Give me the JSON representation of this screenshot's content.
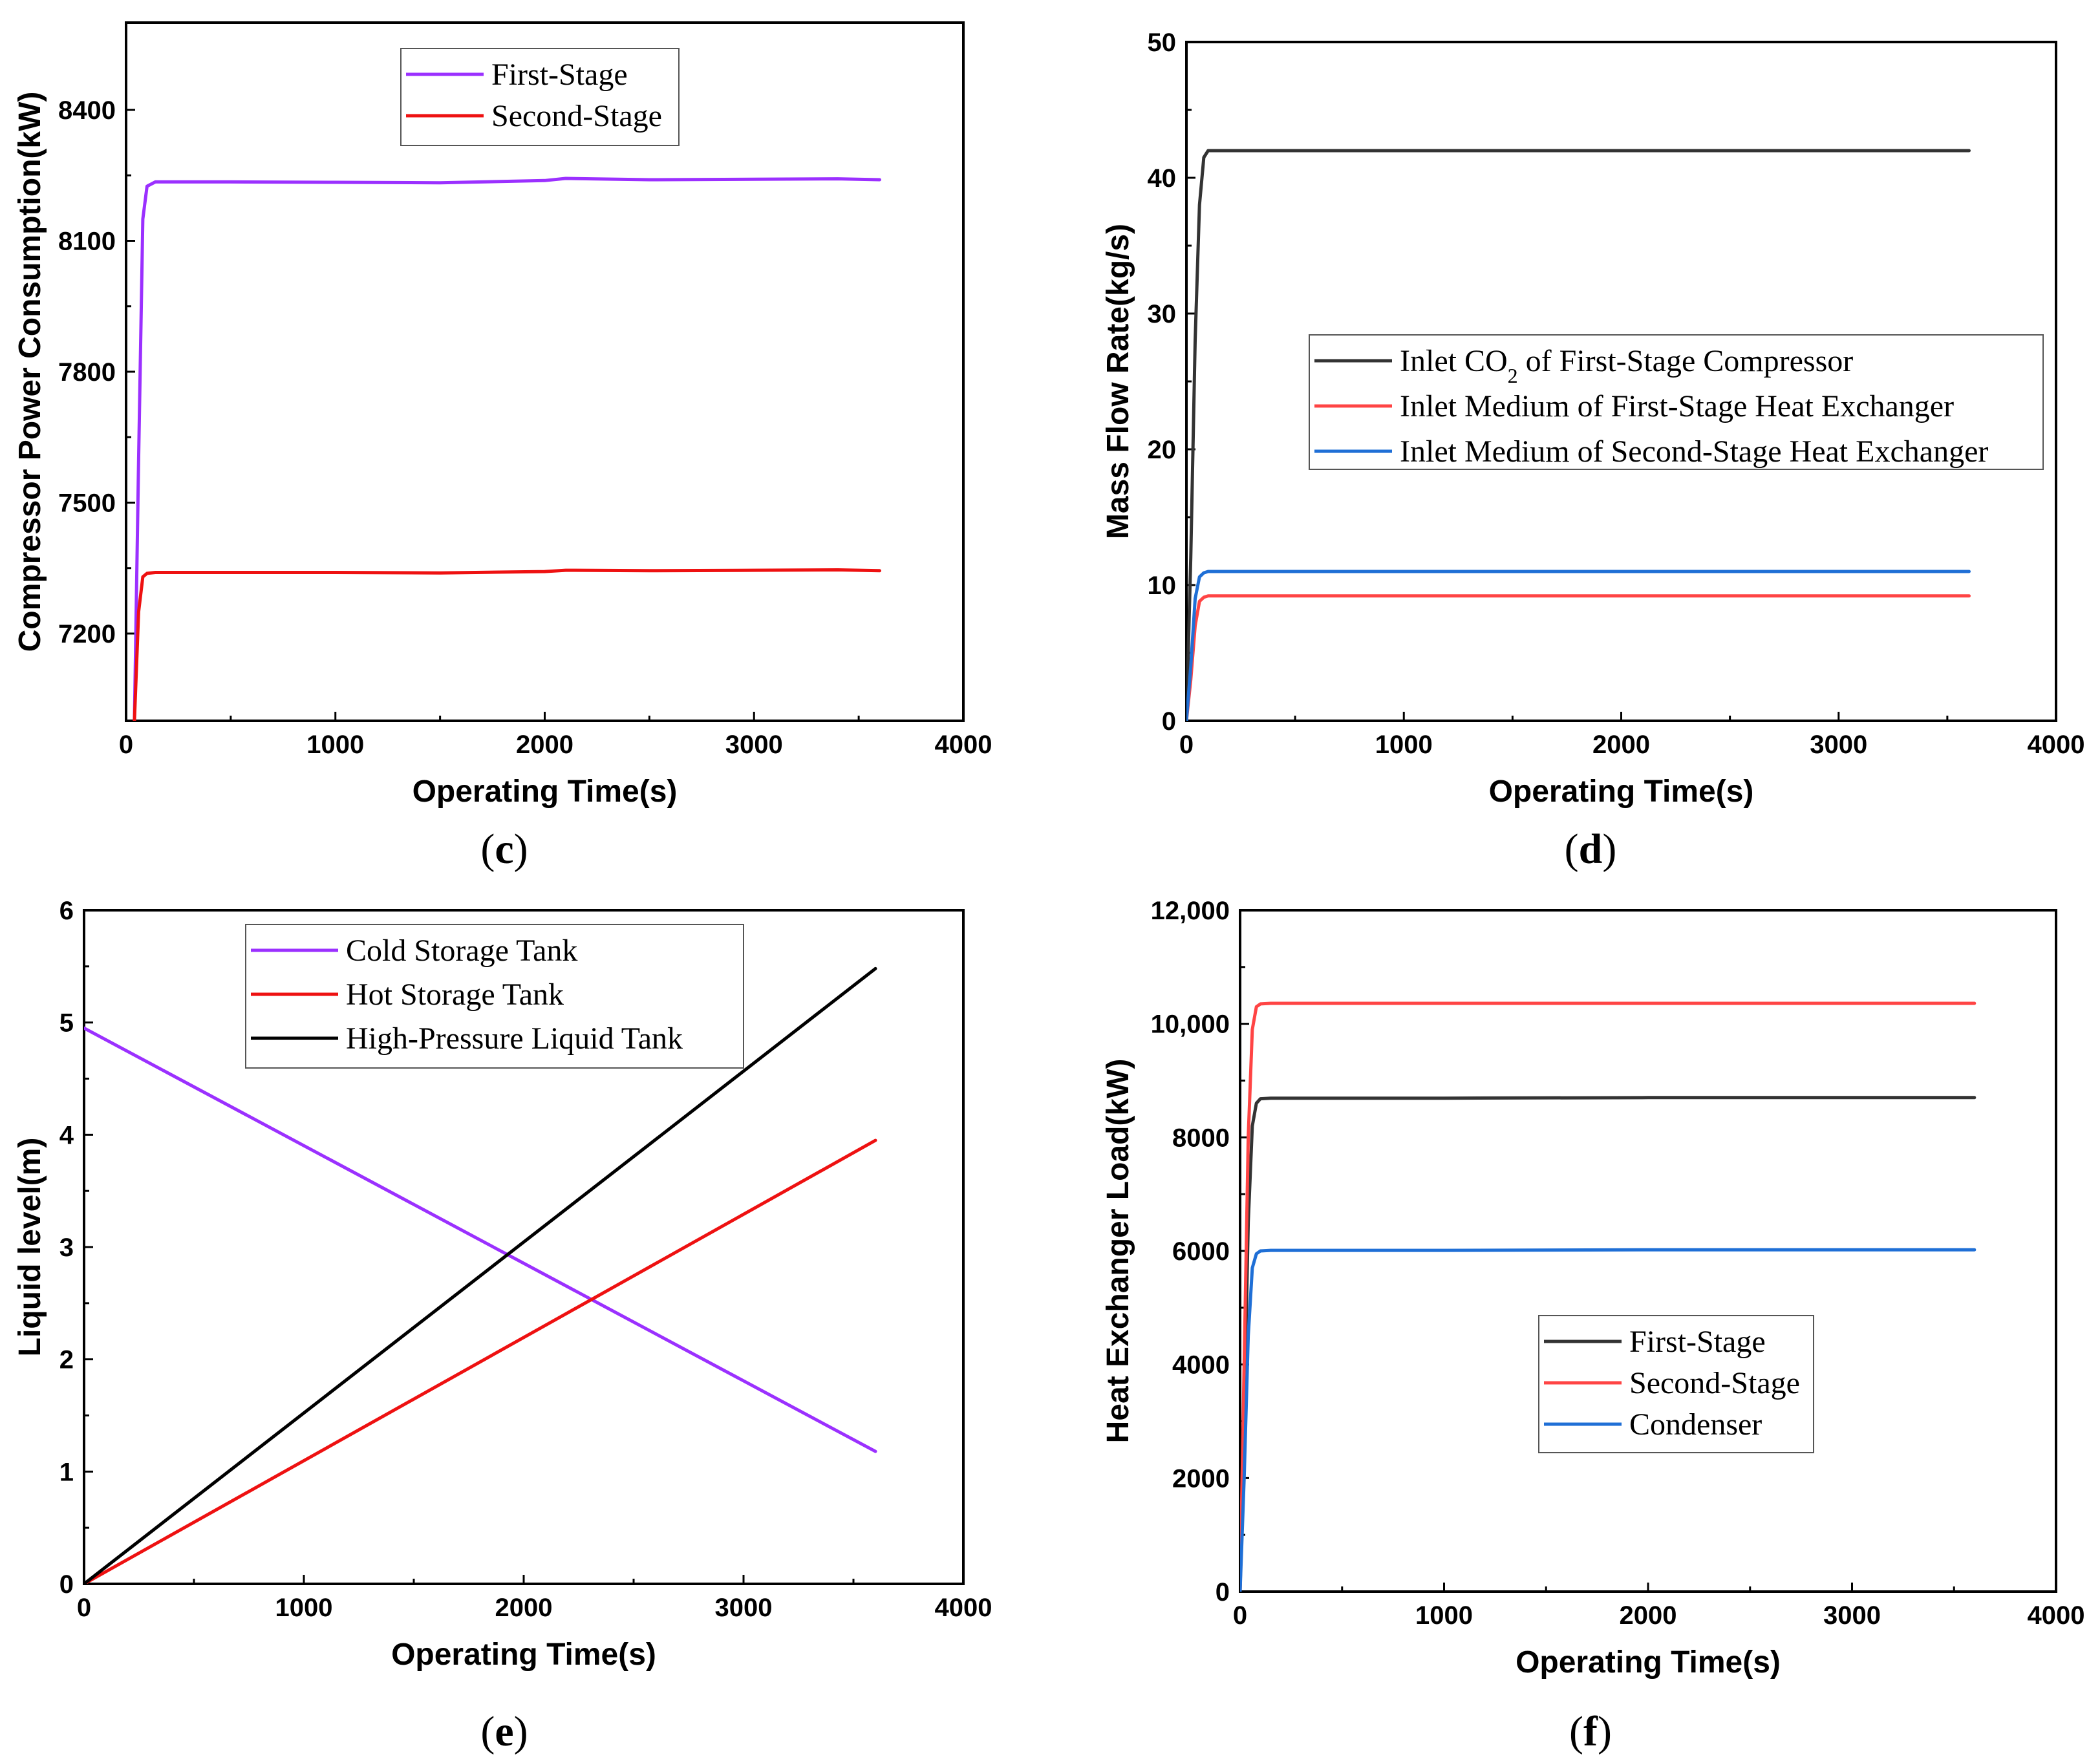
{
  "chart_data": [
    {
      "panel": "c",
      "type": "line",
      "xlabel": "Operating Time(s)",
      "ylabel": "Compressor Power Consumption(kW)",
      "xlim": [
        0,
        4000
      ],
      "ylim": [
        7000,
        8600
      ],
      "xticks": [
        0,
        1000,
        2000,
        3000,
        4000
      ],
      "yticks": [
        7200,
        7500,
        7800,
        8100,
        8400
      ],
      "xtick_labels": [
        "0",
        "1000",
        "2000",
        "3000",
        "4000"
      ],
      "ytick_labels": [
        "7200",
        "7500",
        "7800",
        "8100",
        "8400"
      ],
      "legend_position": "top-center",
      "series": [
        {
          "name": "First-Stage",
          "color": "#9b30ff",
          "x": [
            40,
            60,
            80,
            100,
            140,
            200,
            500,
            1000,
            1500,
            2000,
            2100,
            2500,
            3000,
            3400,
            3600
          ],
          "y": [
            7000,
            7600,
            8150,
            8225,
            8235,
            8235,
            8235,
            8234,
            8233,
            8238,
            8243,
            8240,
            8241,
            8242,
            8240
          ]
        },
        {
          "name": "Second-Stage",
          "color": "#ee1111",
          "x": [
            40,
            60,
            80,
            100,
            140,
            200,
            500,
            1000,
            1500,
            2000,
            2100,
            2500,
            3000,
            3400,
            3600
          ],
          "y": [
            7000,
            7250,
            7330,
            7338,
            7340,
            7340,
            7340,
            7340,
            7339,
            7342,
            7345,
            7344,
            7345,
            7346,
            7344
          ]
        }
      ]
    },
    {
      "panel": "d",
      "type": "line",
      "xlabel": "Operating Time(s)",
      "ylabel": "Mass Flow Rate(kg/s)",
      "xlim": [
        0,
        4000
      ],
      "ylim": [
        0,
        50
      ],
      "xticks": [
        0,
        1000,
        2000,
        3000,
        4000
      ],
      "yticks": [
        0,
        10,
        20,
        30,
        40,
        50
      ],
      "xtick_labels": [
        "0",
        "1000",
        "2000",
        "3000",
        "4000"
      ],
      "ytick_labels": [
        "0",
        "10",
        "20",
        "30",
        "40",
        "50"
      ],
      "legend_position": "center-right",
      "series": [
        {
          "name": "Inlet CO",
          "name_sub": "2",
          "name_suffix": " of First-Stage Compressor",
          "color": "#333333",
          "x": [
            0,
            20,
            40,
            60,
            80,
            100,
            150,
            500,
            1000,
            2000,
            3000,
            3600
          ],
          "y": [
            0,
            12,
            28,
            38,
            41.5,
            42,
            42,
            42,
            42,
            42,
            42,
            42
          ]
        },
        {
          "name": "Inlet Medium  of First-Stage Heat Exchanger",
          "color": "#ff4444",
          "x": [
            0,
            20,
            40,
            60,
            80,
            100,
            150,
            500,
            1000,
            2000,
            3000,
            3600
          ],
          "y": [
            0,
            3,
            7,
            8.8,
            9.1,
            9.2,
            9.2,
            9.2,
            9.2,
            9.2,
            9.2,
            9.2
          ]
        },
        {
          "name": "Inlet Medium  of Second-Stage Heat Exchanger",
          "color": "#1f6fd6",
          "x": [
            0,
            20,
            40,
            60,
            80,
            100,
            150,
            500,
            1000,
            2000,
            3000,
            3600
          ],
          "y": [
            0,
            4,
            9,
            10.6,
            10.9,
            11,
            11,
            11,
            11,
            11,
            11,
            11
          ]
        }
      ]
    },
    {
      "panel": "e",
      "type": "line",
      "xlabel": "Operating Time(s)",
      "ylabel": "Liquid level(m)",
      "xlim": [
        0,
        4000
      ],
      "ylim": [
        0,
        6
      ],
      "xticks": [
        0,
        1000,
        2000,
        3000,
        4000
      ],
      "yticks": [
        0,
        1,
        2,
        3,
        4,
        5,
        6
      ],
      "xtick_labels": [
        "0",
        "1000",
        "2000",
        "3000",
        "4000"
      ],
      "ytick_labels": [
        "0",
        "1",
        "2",
        "3",
        "4",
        "5",
        "6"
      ],
      "legend_position": "top-center",
      "series": [
        {
          "name": "Cold Storage Tank",
          "color": "#9b30ff",
          "x": [
            0,
            3600
          ],
          "y": [
            4.95,
            1.18
          ]
        },
        {
          "name": "Hot Storage Tank",
          "color": "#ee1111",
          "x": [
            0,
            3600
          ],
          "y": [
            0,
            3.95
          ]
        },
        {
          "name": "High-Pressure Liquid Tank",
          "color": "#000000",
          "x": [
            0,
            3600
          ],
          "y": [
            0,
            5.48
          ]
        }
      ]
    },
    {
      "panel": "f",
      "type": "line",
      "xlabel": "Operating Time(s)",
      "ylabel": "Heat Exchanger Load(kW)",
      "xlim": [
        0,
        4000
      ],
      "ylim": [
        0,
        12000
      ],
      "xticks": [
        0,
        1000,
        2000,
        3000,
        4000
      ],
      "yticks": [
        0,
        2000,
        4000,
        6000,
        8000,
        10000,
        12000
      ],
      "xtick_labels": [
        "0",
        "1000",
        "2000",
        "3000",
        "4000"
      ],
      "ytick_labels": [
        "0",
        "2000",
        "4000",
        "6000",
        "8000",
        "10,000",
        "12,000"
      ],
      "legend_position": "lower-center",
      "series": [
        {
          "name": "First-Stage",
          "color": "#333333",
          "x": [
            0,
            20,
            40,
            60,
            80,
            100,
            150,
            500,
            1000,
            2000,
            3000,
            3600
          ],
          "y": [
            0,
            3000,
            6500,
            8200,
            8600,
            8680,
            8690,
            8690,
            8690,
            8700,
            8700,
            8700
          ]
        },
        {
          "name": "Second-Stage",
          "color": "#ff4444",
          "x": [
            0,
            20,
            40,
            60,
            80,
            100,
            150,
            500,
            1000,
            2000,
            3000,
            3600
          ],
          "y": [
            0,
            4000,
            8000,
            9900,
            10300,
            10350,
            10360,
            10360,
            10360,
            10360,
            10360,
            10360
          ]
        },
        {
          "name": "Condenser",
          "color": "#1f6fd6",
          "x": [
            0,
            20,
            40,
            60,
            80,
            100,
            150,
            500,
            1000,
            2000,
            3000,
            3600
          ],
          "y": [
            0,
            2000,
            4500,
            5700,
            5950,
            6000,
            6010,
            6010,
            6010,
            6020,
            6020,
            6020
          ]
        }
      ]
    }
  ]
}
